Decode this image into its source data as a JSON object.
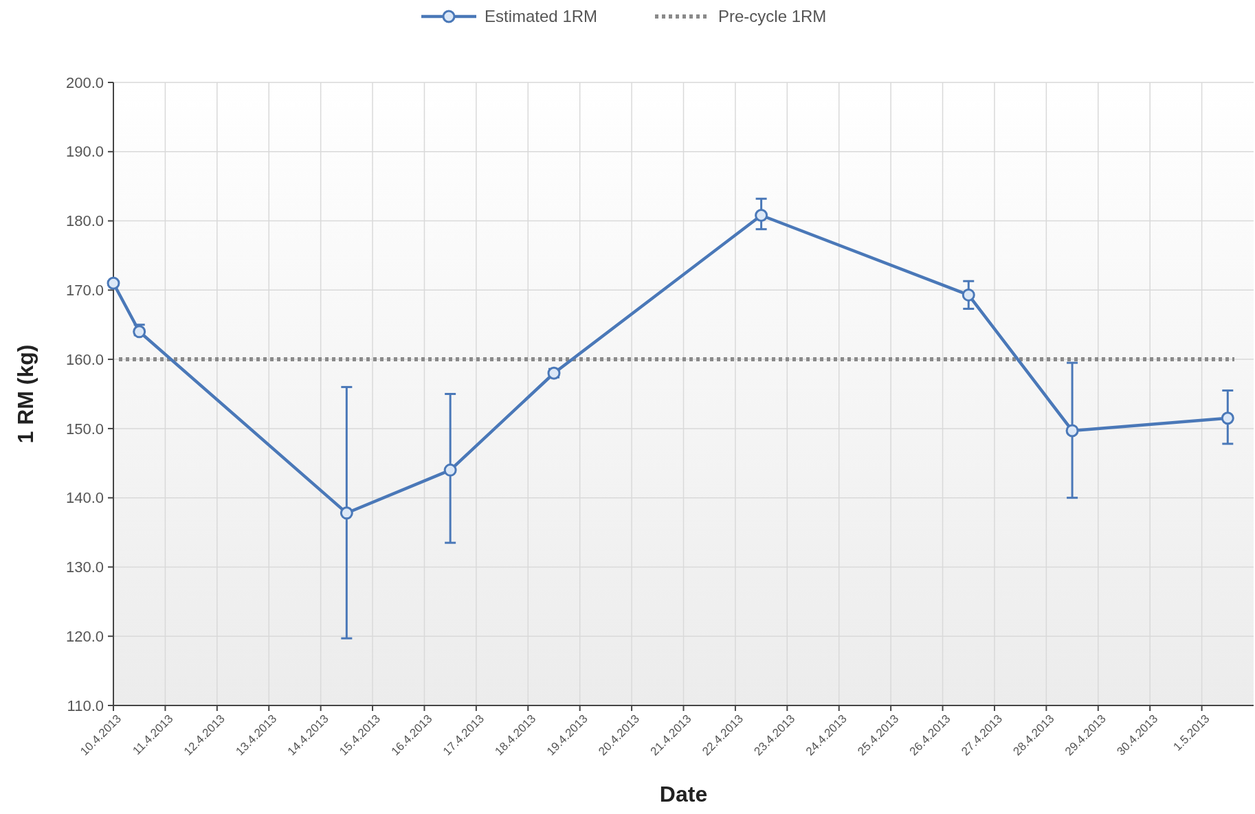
{
  "chart_data": {
    "type": "line",
    "xlabel": "Date",
    "ylabel": "1 RM (kg)",
    "x": [
      "2013-04-10T00:00",
      "2013-04-10T12:00",
      "2013-04-14T12:00",
      "2013-04-16T12:00",
      "2013-04-18T12:00",
      "2013-04-22T12:00",
      "2013-04-26T12:00",
      "2013-04-28T12:00",
      "2013-05-01T12:00"
    ],
    "series": [
      {
        "name": "Estimated 1RM",
        "color": "#4a78b8",
        "values": [
          171,
          164,
          137.8,
          144,
          158,
          180.8,
          169.3,
          149.7,
          151.5
        ],
        "errors": [
          null,
          [
            163.5,
            165
          ],
          [
            119.7,
            156
          ],
          [
            133.5,
            155
          ],
          [
            157.4,
            158.6
          ],
          [
            178.8,
            183.2
          ],
          [
            167.3,
            171.3
          ],
          [
            140,
            159.5
          ],
          [
            147.8,
            155.5
          ]
        ]
      }
    ],
    "ref_lines": [
      {
        "axis": "y",
        "value": 160,
        "label": "Pre-cycle 1RM",
        "color": "#8a8a8a",
        "line_style": "dotted"
      }
    ],
    "ylim": [
      110,
      200
    ],
    "yticks": [
      {
        "value": 110,
        "label": "110.0"
      },
      {
        "value": 120,
        "label": "120.0"
      },
      {
        "value": 130,
        "label": "130.0"
      },
      {
        "value": 140,
        "label": "140.0"
      },
      {
        "value": 150,
        "label": "150.0"
      },
      {
        "value": 160,
        "label": "160.0"
      },
      {
        "value": 170,
        "label": "170.0"
      },
      {
        "value": 180,
        "label": "180.0"
      },
      {
        "value": 190,
        "label": "190.0"
      },
      {
        "value": 200,
        "label": "200.0"
      }
    ],
    "xlim": [
      "2013-04-10",
      "2013-05-02"
    ],
    "xticks": [
      {
        "value": "2013-04-10",
        "label": "10.4.2013"
      },
      {
        "value": "2013-04-11",
        "label": "11.4.2013"
      },
      {
        "value": "2013-04-12",
        "label": "12.4.2013"
      },
      {
        "value": "2013-04-13",
        "label": "13.4.2013"
      },
      {
        "value": "2013-04-14",
        "label": "14.4.2013"
      },
      {
        "value": "2013-04-15",
        "label": "15.4.2013"
      },
      {
        "value": "2013-04-16",
        "label": "16.4.2013"
      },
      {
        "value": "2013-04-17",
        "label": "17.4.2013"
      },
      {
        "value": "2013-04-18",
        "label": "18.4.2013"
      },
      {
        "value": "2013-04-19",
        "label": "19.4.2013"
      },
      {
        "value": "2013-04-20",
        "label": "20.4.2013"
      },
      {
        "value": "2013-04-21",
        "label": "21.4.2013"
      },
      {
        "value": "2013-04-22",
        "label": "22.4.2013"
      },
      {
        "value": "2013-04-23",
        "label": "23.4.2013"
      },
      {
        "value": "2013-04-24",
        "label": "24.4.2013"
      },
      {
        "value": "2013-04-25",
        "label": "25.4.2013"
      },
      {
        "value": "2013-04-26",
        "label": "26.4.2013"
      },
      {
        "value": "2013-04-27",
        "label": "27.4.2013"
      },
      {
        "value": "2013-04-28",
        "label": "28.4.2013"
      },
      {
        "value": "2013-04-29",
        "label": "29.4.2013"
      },
      {
        "value": "2013-04-30",
        "label": "30.4.2013"
      },
      {
        "value": "2013-05-01",
        "label": "1.5.2013"
      }
    ],
    "grid": true,
    "legend": "top",
    "marker": "circle",
    "line_style": "solid"
  }
}
